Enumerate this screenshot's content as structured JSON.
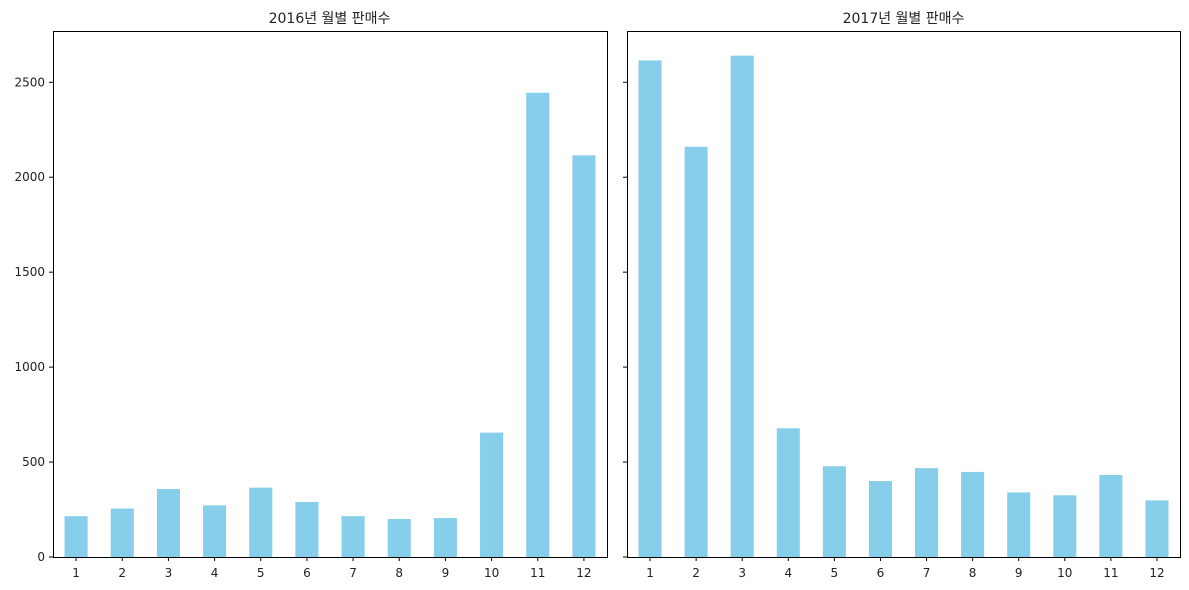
{
  "chart_data": [
    {
      "type": "bar",
      "title": "2016년 월별 판매수",
      "xlabel": "",
      "ylabel": "",
      "categories": [
        "1",
        "2",
        "3",
        "4",
        "5",
        "6",
        "7",
        "8",
        "9",
        "10",
        "11",
        "12"
      ],
      "values": [
        215,
        255,
        358,
        272,
        365,
        290,
        215,
        200,
        205,
        655,
        2445,
        2115
      ],
      "ylim": [
        0,
        2770
      ],
      "yticks": [
        0,
        500,
        1000,
        1500,
        2000,
        2500
      ],
      "ytick_labels": [
        "0",
        "500",
        "1000",
        "1500",
        "2000",
        "2500"
      ],
      "color": "#87CEEB",
      "grid": false
    },
    {
      "type": "bar",
      "title": "2017년 월별 판매수",
      "xlabel": "",
      "ylabel": "",
      "categories": [
        "1",
        "2",
        "3",
        "4",
        "5",
        "6",
        "7",
        "8",
        "9",
        "10",
        "11",
        "12"
      ],
      "values": [
        2615,
        2160,
        2640,
        678,
        478,
        400,
        468,
        448,
        340,
        325,
        432,
        298
      ],
      "ylim": [
        0,
        2770
      ],
      "yticks": [
        0,
        500,
        1000,
        1500,
        2000,
        2500
      ],
      "ytick_labels": [],
      "color": "#87CEEB",
      "grid": false
    }
  ]
}
